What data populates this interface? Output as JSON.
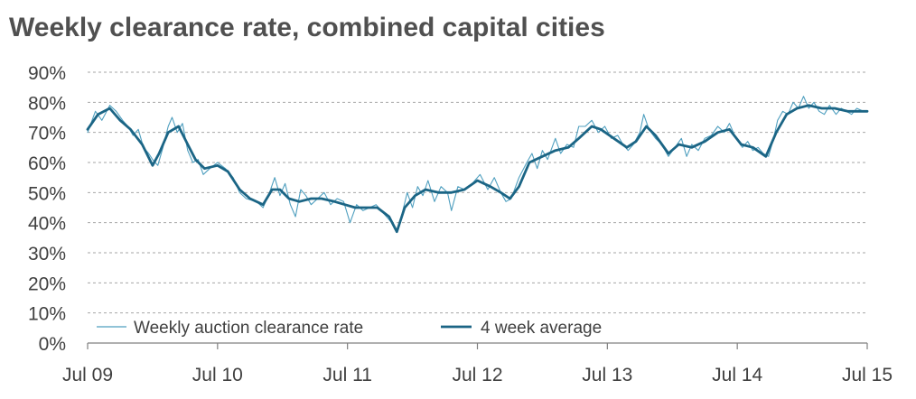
{
  "chart_data": {
    "type": "line",
    "title": "Weekly clearance rate, combined capital cities",
    "xlabel": "",
    "ylabel": "",
    "x_tick_labels": [
      "Jul 09",
      "Jul 10",
      "Jul 11",
      "Jul 12",
      "Jul 13",
      "Jul 14",
      "Jul 15"
    ],
    "y_tick_labels": [
      "0%",
      "10%",
      "20%",
      "30%",
      "40%",
      "50%",
      "60%",
      "70%",
      "80%",
      "90%"
    ],
    "xlim": [
      2009.5,
      2015.5
    ],
    "ylim": [
      0,
      90
    ],
    "grid": "horizontal dashed",
    "legend_position": "bottom-left",
    "colors": {
      "weekly": "#4f9fbf",
      "average": "#1b6585",
      "grid": "#a6a6a6",
      "text": "#404040",
      "title": "#505050"
    },
    "series": [
      {
        "name": "Weekly auction clearance rate",
        "style": "thin",
        "points": [
          [
            2009.5,
            70
          ],
          [
            2009.56,
            77
          ],
          [
            2009.61,
            74
          ],
          [
            2009.67,
            79
          ],
          [
            2009.72,
            77
          ],
          [
            2009.77,
            74
          ],
          [
            2009.81,
            72
          ],
          [
            2009.85,
            69
          ],
          [
            2009.89,
            71
          ],
          [
            2009.93,
            65
          ],
          [
            2009.97,
            63
          ],
          [
            2010.0,
            61
          ],
          [
            2010.04,
            59
          ],
          [
            2010.08,
            65
          ],
          [
            2010.12,
            72
          ],
          [
            2010.15,
            75
          ],
          [
            2010.19,
            70
          ],
          [
            2010.23,
            73
          ],
          [
            2010.27,
            64
          ],
          [
            2010.31,
            60
          ],
          [
            2010.35,
            61
          ],
          [
            2010.39,
            56
          ],
          [
            2010.44,
            58
          ],
          [
            2010.5,
            60
          ],
          [
            2010.56,
            58
          ],
          [
            2010.62,
            55
          ],
          [
            2010.67,
            50
          ],
          [
            2010.72,
            48
          ],
          [
            2010.8,
            47
          ],
          [
            2010.85,
            45
          ],
          [
            2010.9,
            50
          ],
          [
            2010.94,
            55
          ],
          [
            2010.98,
            49
          ],
          [
            2011.02,
            53
          ],
          [
            2011.06,
            46
          ],
          [
            2011.1,
            42
          ],
          [
            2011.14,
            51
          ],
          [
            2011.18,
            49
          ],
          [
            2011.22,
            46
          ],
          [
            2011.27,
            48
          ],
          [
            2011.32,
            50
          ],
          [
            2011.37,
            46
          ],
          [
            2011.42,
            48
          ],
          [
            2011.47,
            47
          ],
          [
            2011.52,
            40
          ],
          [
            2011.57,
            46
          ],
          [
            2011.62,
            44
          ],
          [
            2011.67,
            45
          ],
          [
            2011.72,
            46
          ],
          [
            2011.78,
            43
          ],
          [
            2011.84,
            40
          ],
          [
            2011.88,
            37
          ],
          [
            2011.92,
            43
          ],
          [
            2011.96,
            50
          ],
          [
            2012.0,
            45
          ],
          [
            2012.04,
            52
          ],
          [
            2012.08,
            49
          ],
          [
            2012.12,
            54
          ],
          [
            2012.17,
            47
          ],
          [
            2012.22,
            52
          ],
          [
            2012.27,
            50
          ],
          [
            2012.3,
            44
          ],
          [
            2012.35,
            52
          ],
          [
            2012.4,
            51
          ],
          [
            2012.46,
            53
          ],
          [
            2012.52,
            56
          ],
          [
            2012.58,
            51
          ],
          [
            2012.63,
            55
          ],
          [
            2012.68,
            50
          ],
          [
            2012.72,
            47
          ],
          [
            2012.76,
            48
          ],
          [
            2012.82,
            55
          ],
          [
            2012.88,
            60
          ],
          [
            2012.92,
            63
          ],
          [
            2012.96,
            58
          ],
          [
            2013.0,
            64
          ],
          [
            2013.04,
            61
          ],
          [
            2013.1,
            68
          ],
          [
            2013.14,
            63
          ],
          [
            2013.19,
            66
          ],
          [
            2013.24,
            65
          ],
          [
            2013.28,
            72
          ],
          [
            2013.33,
            72
          ],
          [
            2013.38,
            74
          ],
          [
            2013.43,
            70
          ],
          [
            2013.48,
            72
          ],
          [
            2013.53,
            68
          ],
          [
            2013.58,
            69
          ],
          [
            2013.62,
            66
          ],
          [
            2013.66,
            64
          ],
          [
            2013.7,
            66
          ],
          [
            2013.75,
            70
          ],
          [
            2013.78,
            76
          ],
          [
            2013.82,
            71
          ],
          [
            2013.87,
            68
          ],
          [
            2013.92,
            66
          ],
          [
            2013.97,
            62
          ],
          [
            2014.02,
            65
          ],
          [
            2014.07,
            68
          ],
          [
            2014.11,
            62
          ],
          [
            2014.15,
            66
          ],
          [
            2014.2,
            64
          ],
          [
            2014.25,
            68
          ],
          [
            2014.3,
            69
          ],
          [
            2014.35,
            72
          ],
          [
            2014.4,
            70
          ],
          [
            2014.44,
            73
          ],
          [
            2014.49,
            68
          ],
          [
            2014.54,
            65
          ],
          [
            2014.58,
            67
          ],
          [
            2014.62,
            64
          ],
          [
            2014.66,
            65
          ],
          [
            2014.7,
            63
          ],
          [
            2014.74,
            62
          ],
          [
            2014.78,
            68
          ],
          [
            2014.81,
            74
          ],
          [
            2014.85,
            77
          ],
          [
            2014.89,
            76
          ],
          [
            2014.93,
            80
          ],
          [
            2014.97,
            78
          ],
          [
            2015.01,
            82
          ],
          [
            2015.05,
            78
          ],
          [
            2015.09,
            80
          ],
          [
            2015.13,
            77
          ],
          [
            2015.17,
            76
          ],
          [
            2015.21,
            79
          ],
          [
            2015.26,
            76
          ],
          [
            2015.3,
            78
          ],
          [
            2015.34,
            77
          ],
          [
            2015.38,
            76
          ],
          [
            2015.42,
            78
          ],
          [
            2015.47,
            77
          ],
          [
            2015.5,
            77
          ]
        ]
      },
      {
        "name": "4 week average",
        "style": "thick",
        "points": [
          [
            2009.5,
            71
          ],
          [
            2009.58,
            76
          ],
          [
            2009.67,
            78
          ],
          [
            2009.75,
            74
          ],
          [
            2009.83,
            71
          ],
          [
            2009.92,
            66
          ],
          [
            2010.0,
            59
          ],
          [
            2010.05,
            63
          ],
          [
            2010.12,
            70
          ],
          [
            2010.2,
            72
          ],
          [
            2010.27,
            66
          ],
          [
            2010.33,
            61
          ],
          [
            2010.4,
            58
          ],
          [
            2010.5,
            59
          ],
          [
            2010.58,
            57
          ],
          [
            2010.67,
            51
          ],
          [
            2010.75,
            48
          ],
          [
            2010.85,
            46
          ],
          [
            2010.92,
            51
          ],
          [
            2010.98,
            51
          ],
          [
            2011.05,
            48
          ],
          [
            2011.13,
            47
          ],
          [
            2011.22,
            48
          ],
          [
            2011.3,
            48
          ],
          [
            2011.4,
            47
          ],
          [
            2011.48,
            46
          ],
          [
            2011.56,
            45
          ],
          [
            2011.65,
            45
          ],
          [
            2011.73,
            45
          ],
          [
            2011.82,
            42
          ],
          [
            2011.88,
            37
          ],
          [
            2011.94,
            45
          ],
          [
            2012.02,
            49
          ],
          [
            2012.1,
            51
          ],
          [
            2012.2,
            50
          ],
          [
            2012.3,
            50
          ],
          [
            2012.4,
            51
          ],
          [
            2012.5,
            54
          ],
          [
            2012.6,
            52
          ],
          [
            2012.68,
            50
          ],
          [
            2012.75,
            48
          ],
          [
            2012.82,
            52
          ],
          [
            2012.9,
            60
          ],
          [
            2013.0,
            62
          ],
          [
            2013.1,
            64
          ],
          [
            2013.2,
            65
          ],
          [
            2013.28,
            68
          ],
          [
            2013.38,
            72
          ],
          [
            2013.45,
            71
          ],
          [
            2013.55,
            68
          ],
          [
            2013.65,
            65
          ],
          [
            2013.72,
            67
          ],
          [
            2013.8,
            72
          ],
          [
            2013.87,
            69
          ],
          [
            2013.97,
            63
          ],
          [
            2014.05,
            66
          ],
          [
            2014.15,
            65
          ],
          [
            2014.25,
            67
          ],
          [
            2014.35,
            70
          ],
          [
            2014.44,
            71
          ],
          [
            2014.53,
            66
          ],
          [
            2014.62,
            65
          ],
          [
            2014.72,
            62
          ],
          [
            2014.8,
            70
          ],
          [
            2014.88,
            76
          ],
          [
            2014.96,
            78
          ],
          [
            2015.05,
            79
          ],
          [
            2015.15,
            78
          ],
          [
            2015.25,
            78
          ],
          [
            2015.35,
            77
          ],
          [
            2015.5,
            77
          ]
        ]
      }
    ]
  }
}
